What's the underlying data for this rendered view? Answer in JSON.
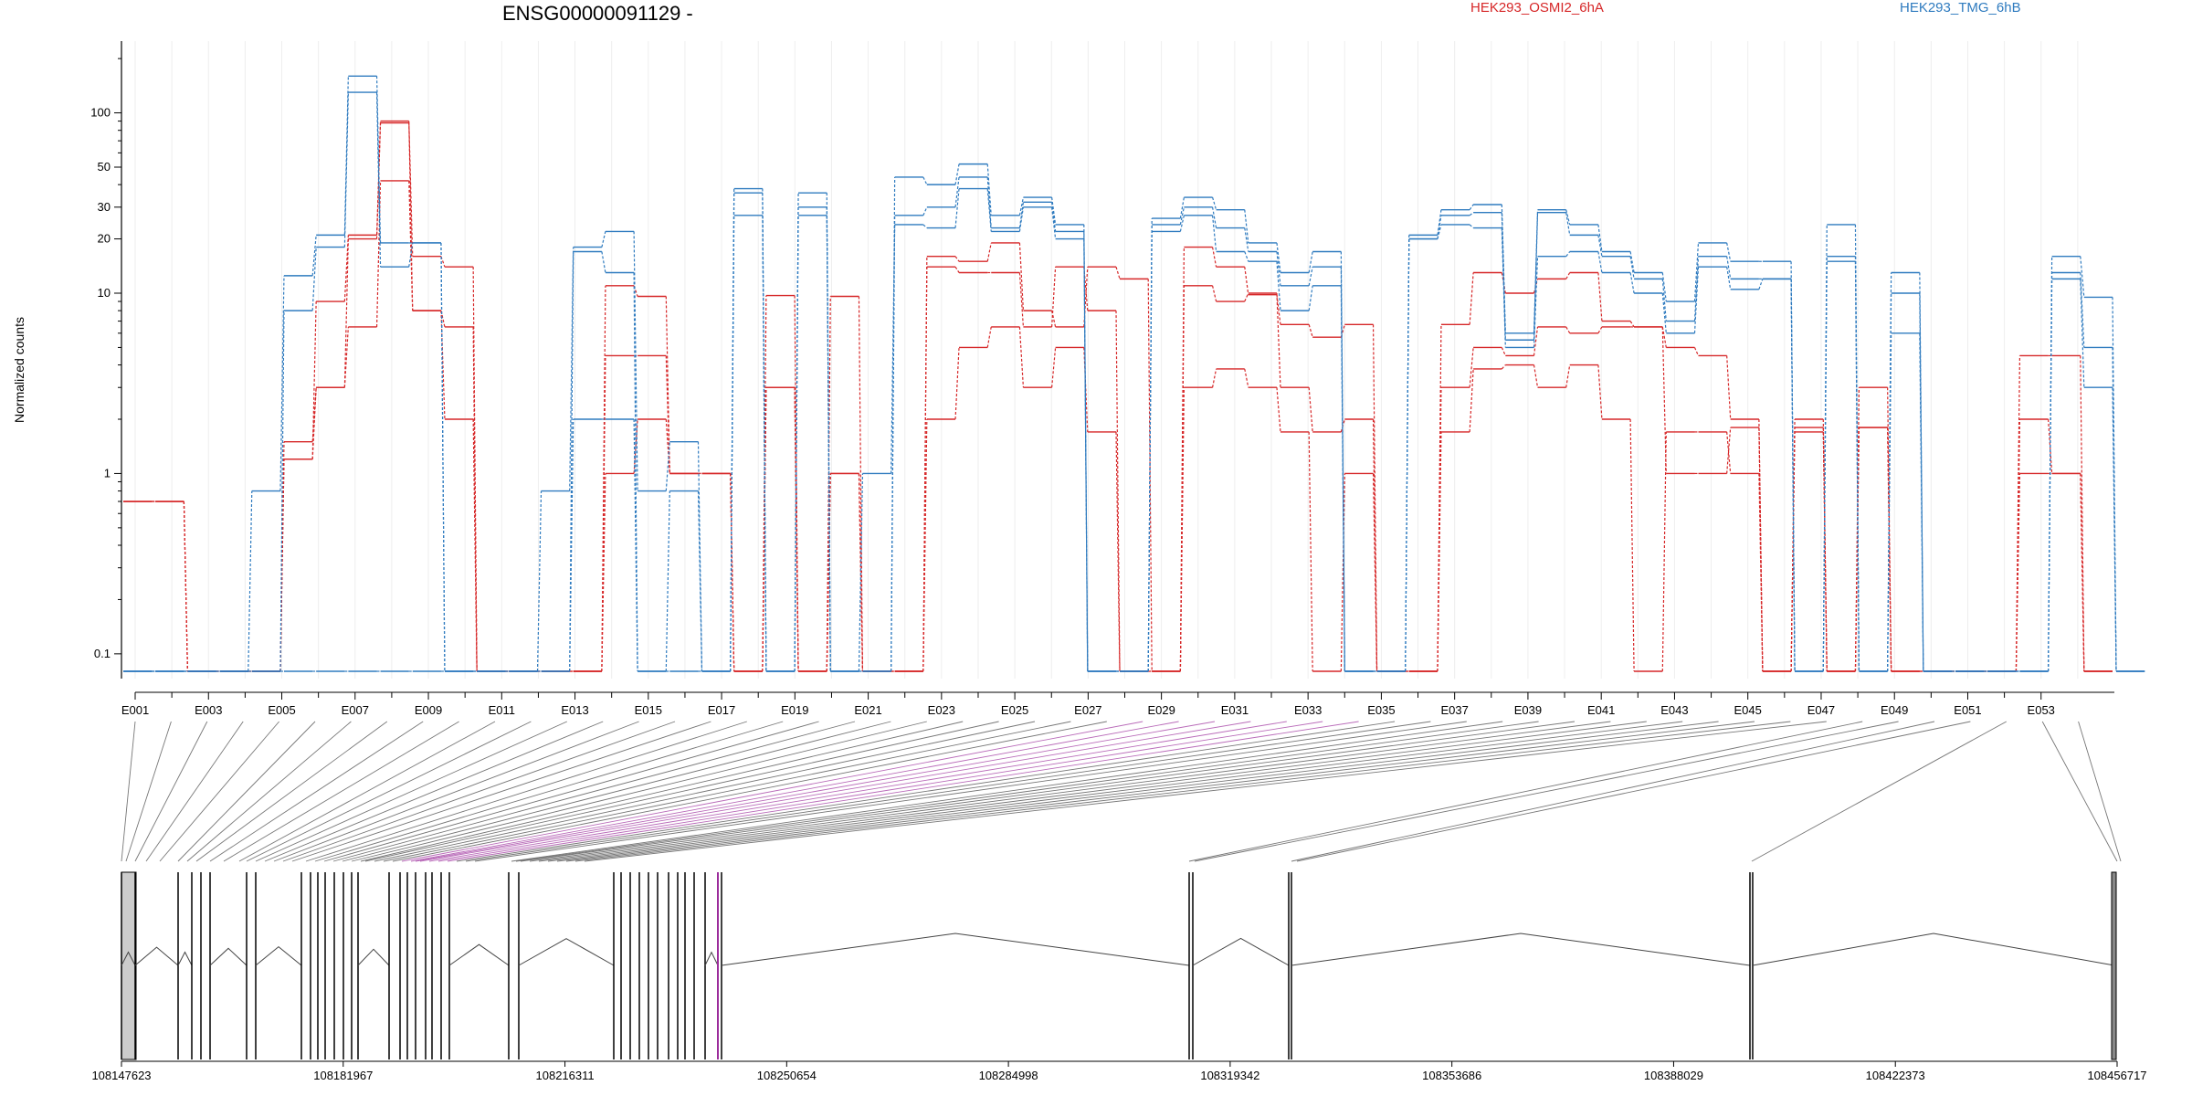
{
  "chart_data": {
    "type": "line",
    "title": "ENSG00000091129 -",
    "ylabel": "Normalized counts",
    "yscale": "log",
    "ylim": [
      0.08,
      250
    ],
    "y_ticks": [
      {
        "label": "0.1",
        "value": 0.1
      },
      {
        "label": "1",
        "value": 1
      },
      {
        "label": "10",
        "value": 10
      },
      {
        "label": "20",
        "value": 20
      },
      {
        "label": "30",
        "value": 30
      },
      {
        "label": "50",
        "value": 50
      },
      {
        "label": "100",
        "value": 100
      }
    ],
    "exon_labels": [
      "E001",
      "E003",
      "E005",
      "E007",
      "E009",
      "E011",
      "E013",
      "E015",
      "E017",
      "E019",
      "E021",
      "E023",
      "E025",
      "E027",
      "E029",
      "E031",
      "E033",
      "E035",
      "E037",
      "E039",
      "E041",
      "E043",
      "E045",
      "E047",
      "E049",
      "E051",
      "E053"
    ],
    "genomic_ticks": [
      "108147623",
      "108181967",
      "108216311",
      "108250654",
      "108284998",
      "108319342",
      "108353686",
      "108388029",
      "108422373",
      "108456717"
    ],
    "genomic_range": [
      108147623,
      108456717
    ],
    "legend": [
      {
        "name": "HEK293_OSMI2_6hA",
        "color": "#d62728"
      },
      {
        "name": "HEK293_TMG_6hB",
        "color": "#2f7bbf"
      }
    ],
    "series": [
      {
        "name": "HEK293_OSMI2_6hA",
        "color": "#d62728",
        "values": [
          0.7,
          0.7,
          0.08,
          0.08,
          0.08,
          1.2,
          9.0,
          21.0,
          88.0,
          16.0,
          14.0,
          0.08,
          0.08,
          0.08,
          0.08,
          11.0,
          9.6,
          1.0,
          1.0,
          0.08,
          9.7,
          0.08,
          9.6,
          0.08,
          0.08,
          16.0,
          15.0,
          19.0,
          8.0,
          6.5,
          14.0,
          12.0,
          0.08,
          18.0,
          14.0,
          9.8,
          6.7,
          5.7,
          6.7,
          0.08,
          0.08,
          6.7,
          13.0,
          10.0,
          12.0,
          13.0,
          7.0,
          6.5,
          5.0,
          4.5,
          2.0,
          0.08,
          2.0,
          0.08,
          3.0,
          0.08,
          0.08,
          0.08,
          0.08,
          4.5,
          4.5,
          0.08
        ]
      },
      {
        "name": "HEK293_OSMI2_6hA",
        "color": "#d62728",
        "values": [
          0.7,
          0.7,
          0.08,
          0.08,
          0.08,
          1.5,
          3.0,
          6.5,
          42.0,
          8.0,
          6.5,
          0.08,
          0.08,
          0.08,
          0.08,
          4.5,
          4.5,
          1.0,
          1.0,
          0.08,
          3.0,
          0.08,
          1.0,
          0.08,
          0.08,
          14.0,
          13.0,
          13.0,
          6.5,
          14.0,
          8.0,
          0.08,
          0.08,
          11.0,
          9.0,
          10.0,
          3.0,
          1.7,
          2.0,
          0.08,
          0.08,
          3.0,
          5.0,
          4.5,
          6.5,
          6.0,
          6.5,
          6.5,
          1.0,
          1.0,
          1.8,
          0.08,
          1.8,
          0.08,
          1.8,
          0.08,
          0.08,
          0.08,
          0.08,
          2.0,
          1.0,
          0.08
        ]
      },
      {
        "name": "HEK293_OSMI2_6hA",
        "color": "#d62728",
        "values": [
          0.7,
          0.7,
          0.08,
          0.08,
          0.08,
          1.2,
          3.0,
          20.0,
          90.0,
          8.0,
          2.0,
          0.08,
          0.08,
          0.08,
          0.08,
          1.0,
          2.0,
          1.0,
          1.0,
          0.08,
          3.0,
          0.08,
          1.0,
          0.08,
          0.08,
          2.0,
          5.0,
          6.5,
          3.0,
          5.0,
          1.7,
          0.08,
          0.08,
          3.0,
          3.8,
          3.0,
          1.7,
          0.08,
          1.0,
          0.08,
          0.08,
          1.7,
          3.8,
          4.0,
          3.0,
          4.0,
          2.0,
          0.08,
          1.7,
          1.7,
          1.0,
          0.08,
          1.7,
          0.08,
          1.8,
          0.08,
          0.08,
          0.08,
          0.08,
          1.0,
          1.0,
          0.08
        ]
      },
      {
        "name": "HEK293_TMG_6hB",
        "color": "#2f7bbf",
        "values": [
          0.08,
          0.08,
          0.08,
          0.08,
          0.8,
          12.5,
          21.0,
          160.0,
          19.0,
          19.0,
          0.08,
          0.08,
          0.08,
          0.8,
          18.0,
          22.0,
          0.8,
          1.5,
          0.08,
          38.0,
          0.08,
          36.0,
          0.08,
          0.08,
          44.0,
          40.0,
          52.0,
          27.0,
          34.0,
          24.0,
          0.08,
          0.08,
          26.0,
          34.0,
          29.0,
          19.0,
          13.0,
          17.0,
          0.08,
          0.08,
          21.0,
          29.0,
          31.0,
          6.0,
          29.0,
          24.0,
          17.0,
          13.0,
          9.0,
          19.0,
          15.0,
          15.0,
          0.08,
          24.0,
          0.08,
          13.0,
          0.08,
          0.08,
          0.08,
          0.08,
          16.0,
          9.5,
          0.08
        ]
      },
      {
        "name": "HEK293_TMG_6hB",
        "color": "#2f7bbf",
        "values": [
          0.08,
          0.08,
          0.08,
          0.08,
          0.08,
          8.0,
          18.0,
          130.0,
          14.0,
          19.0,
          0.08,
          0.08,
          0.08,
          0.08,
          17.0,
          13.0,
          0.08,
          0.8,
          0.08,
          36.0,
          0.08,
          30.0,
          0.08,
          0.08,
          27.0,
          30.0,
          44.0,
          23.0,
          32.0,
          22.0,
          0.08,
          0.08,
          24.0,
          30.0,
          23.0,
          17.0,
          11.0,
          14.0,
          0.08,
          0.08,
          20.0,
          27.0,
          28.0,
          5.5,
          28.0,
          21.0,
          16.0,
          12.0,
          7.0,
          16.0,
          12.0,
          12.0,
          0.08,
          16.0,
          0.08,
          10.0,
          0.08,
          0.08,
          0.08,
          0.08,
          13.0,
          5.0,
          0.08
        ]
      },
      {
        "name": "HEK293_TMG_6hB",
        "color": "#2f7bbf",
        "values": [
          0.08,
          0.08,
          0.08,
          0.08,
          0.08,
          0.08,
          0.08,
          0.08,
          0.08,
          0.08,
          0.08,
          0.08,
          0.08,
          0.08,
          2.0,
          2.0,
          0.08,
          0.08,
          0.08,
          27.0,
          0.08,
          27.0,
          0.08,
          1.0,
          24.0,
          23.0,
          38.0,
          22.0,
          30.0,
          20.0,
          0.08,
          0.08,
          22.0,
          27.0,
          17.0,
          15.0,
          8.0,
          11.0,
          0.08,
          0.08,
          20.0,
          24.0,
          23.0,
          5.0,
          16.0,
          17.0,
          13.0,
          10.0,
          6.0,
          14.0,
          10.5,
          12.0,
          0.08,
          15.0,
          0.08,
          6.0,
          0.08,
          0.08,
          0.08,
          0.08,
          12.0,
          3.0,
          0.08
        ]
      }
    ],
    "grid": true
  }
}
